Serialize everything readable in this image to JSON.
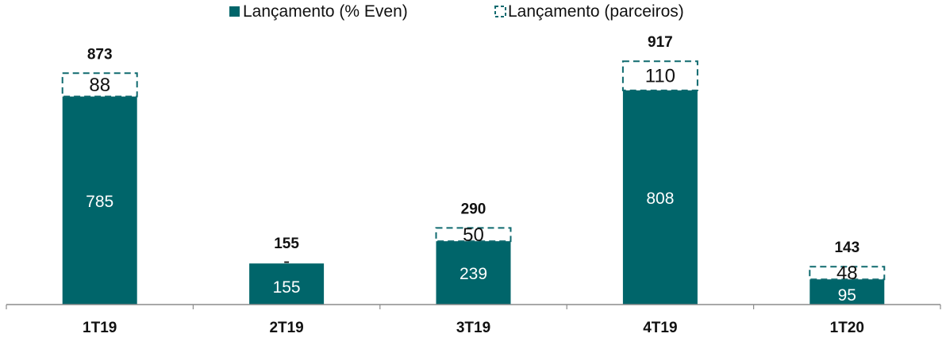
{
  "chart_data": {
    "type": "bar",
    "stacked": true,
    "categories": [
      "1T19",
      "2T19",
      "3T19",
      "4T19",
      "1T20"
    ],
    "series": [
      {
        "name": "Lançamento (% Even)",
        "values": [
          785,
          155,
          239,
          808,
          95
        ],
        "labels": [
          "785",
          "155",
          "239",
          "808",
          "95"
        ]
      },
      {
        "name": "Lançamento (parceiros)",
        "values": [
          88,
          0,
          50,
          110,
          48
        ],
        "labels": [
          "88",
          "-",
          "50",
          "110",
          "48"
        ]
      }
    ],
    "totals": [
      873,
      155,
      290,
      917,
      143
    ],
    "total_labels": [
      "873",
      "155",
      "290",
      "917",
      "143"
    ],
    "legend_position": "top-center",
    "grid": false
  },
  "colors": {
    "even": "#00656a",
    "partner_border": "#0f6a6f",
    "axis": "#8c8c8c",
    "text": "#111111",
    "bar_text": "#ffffff"
  }
}
